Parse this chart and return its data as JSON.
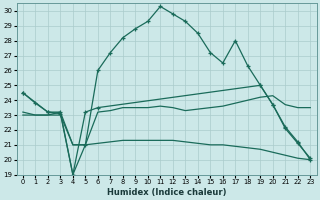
{
  "xlabel": "Humidex (Indice chaleur)",
  "background_color": "#cce8e8",
  "grid_color": "#aacccc",
  "line_color": "#1a6b5a",
  "xlim": [
    -0.5,
    23.5
  ],
  "ylim": [
    19,
    30.5
  ],
  "yticks": [
    19,
    20,
    21,
    22,
    23,
    24,
    25,
    26,
    27,
    28,
    29,
    30
  ],
  "xticks": [
    0,
    1,
    2,
    3,
    4,
    5,
    6,
    7,
    8,
    9,
    10,
    11,
    12,
    13,
    14,
    15,
    16,
    17,
    18,
    19,
    20,
    21,
    22,
    23
  ],
  "line1_x": [
    0,
    1,
    2,
    3,
    4,
    5,
    6,
    7,
    8,
    9,
    10,
    11,
    12,
    13,
    14,
    15,
    16,
    17,
    18,
    19,
    20,
    21,
    22,
    23
  ],
  "line1_y": [
    24.5,
    23.8,
    23.2,
    23.1,
    19.0,
    21.0,
    26.0,
    27.2,
    28.2,
    28.8,
    29.3,
    30.3,
    29.8,
    29.3,
    28.5,
    27.2,
    26.5,
    28.0,
    26.3,
    25.0,
    23.7,
    22.1,
    21.1,
    20.1
  ],
  "line2_x": [
    0,
    1,
    2,
    3,
    4,
    5,
    6,
    7,
    8,
    9,
    10,
    11,
    12,
    13,
    14,
    15,
    16,
    17,
    18,
    19,
    20,
    21,
    22,
    23
  ],
  "line2_y": [
    23.2,
    23.0,
    23.0,
    23.2,
    21.0,
    21.0,
    23.2,
    23.3,
    23.5,
    23.5,
    23.5,
    23.6,
    23.5,
    23.3,
    23.4,
    23.5,
    23.6,
    23.8,
    24.0,
    24.2,
    24.3,
    23.7,
    23.5,
    23.5
  ],
  "line3_x": [
    0,
    1,
    2,
    3,
    4,
    5,
    6,
    7,
    8,
    9,
    10,
    11,
    12,
    13,
    14,
    15,
    16,
    17,
    18,
    19,
    20,
    21,
    22,
    23
  ],
  "line3_y": [
    23.0,
    23.0,
    23.0,
    23.0,
    21.0,
    21.0,
    21.1,
    21.2,
    21.3,
    21.3,
    21.3,
    21.3,
    21.3,
    21.2,
    21.1,
    21.0,
    21.0,
    20.9,
    20.8,
    20.7,
    20.5,
    20.3,
    20.1,
    20.0
  ],
  "line4_x": [
    0,
    2,
    3,
    4,
    5,
    6,
    19,
    20,
    21,
    22,
    23
  ],
  "line4_y": [
    24.5,
    23.2,
    23.2,
    19.0,
    23.2,
    23.5,
    25.0,
    23.7,
    22.2,
    21.2,
    20.0
  ]
}
